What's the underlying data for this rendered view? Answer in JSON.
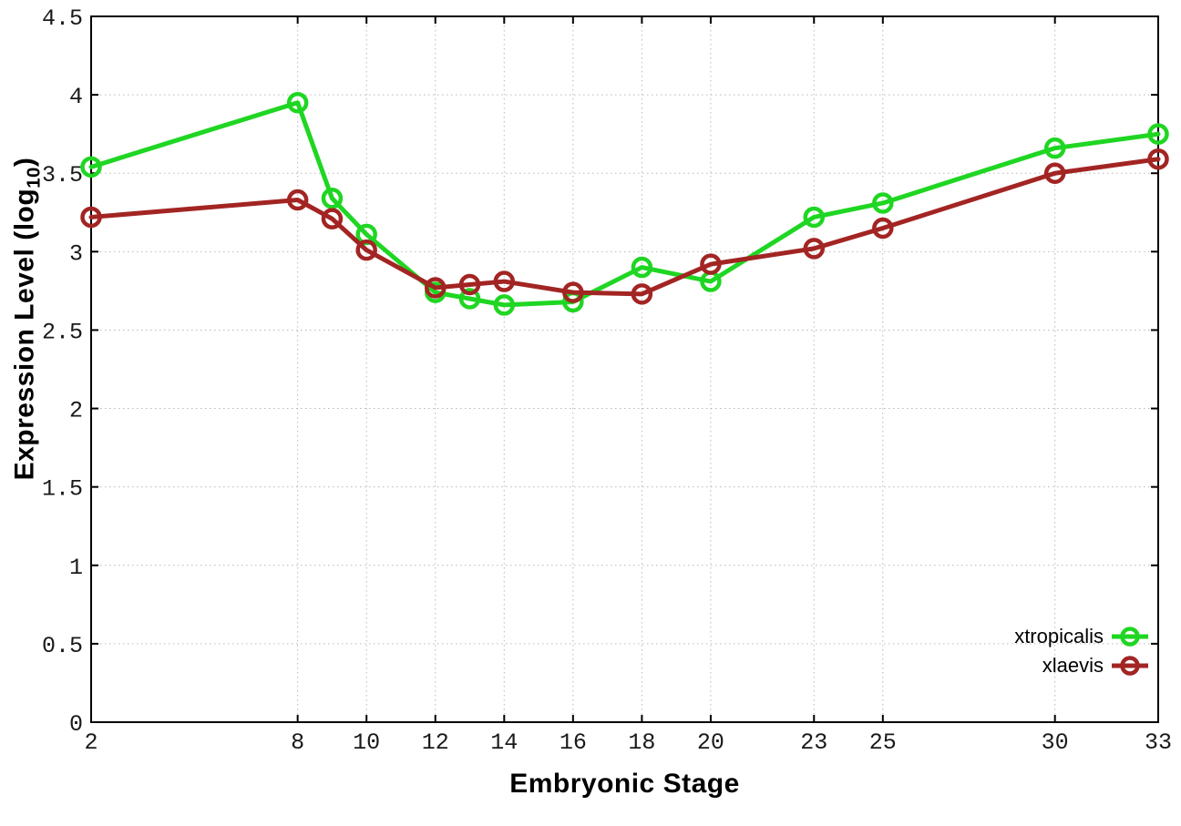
{
  "chart_data": {
    "type": "line",
    "title": "",
    "xlabel": "Embryonic Stage",
    "ylabel_prefix": "Expression Level (log",
    "ylabel_sub": "10",
    "ylabel_suffix": ")",
    "xlim": [
      2,
      33
    ],
    "ylim": [
      0,
      4.5
    ],
    "grid": true,
    "x_ticks": [
      2,
      8,
      10,
      12,
      14,
      16,
      18,
      20,
      23,
      25,
      30,
      33
    ],
    "y_ticks": [
      0,
      0.5,
      1,
      1.5,
      2,
      2.5,
      3,
      3.5,
      4,
      4.5
    ],
    "x": [
      2,
      8,
      9,
      10,
      12,
      13,
      14,
      16,
      18,
      20,
      23,
      25,
      30,
      33
    ],
    "series": [
      {
        "name": "xtropicalis",
        "color": "#1fd622",
        "values": [
          3.54,
          3.95,
          3.34,
          3.11,
          2.74,
          2.7,
          2.66,
          2.68,
          2.9,
          2.81,
          3.22,
          3.31,
          3.66,
          3.75
        ]
      },
      {
        "name": "xlaevis",
        "color": "#a22523",
        "values": [
          3.22,
          3.33,
          3.21,
          3.01,
          2.77,
          2.79,
          2.81,
          2.74,
          2.73,
          2.92,
          3.02,
          3.15,
          3.5,
          3.59
        ]
      }
    ],
    "legend_position": "bottom-right",
    "grid_color": "#b8b8b8",
    "axis_color": "#000000"
  },
  "legend": {
    "entries": [
      {
        "label": "xtropicalis",
        "color": "#1fd622"
      },
      {
        "label": "xlaevis",
        "color": "#a22523"
      }
    ]
  }
}
